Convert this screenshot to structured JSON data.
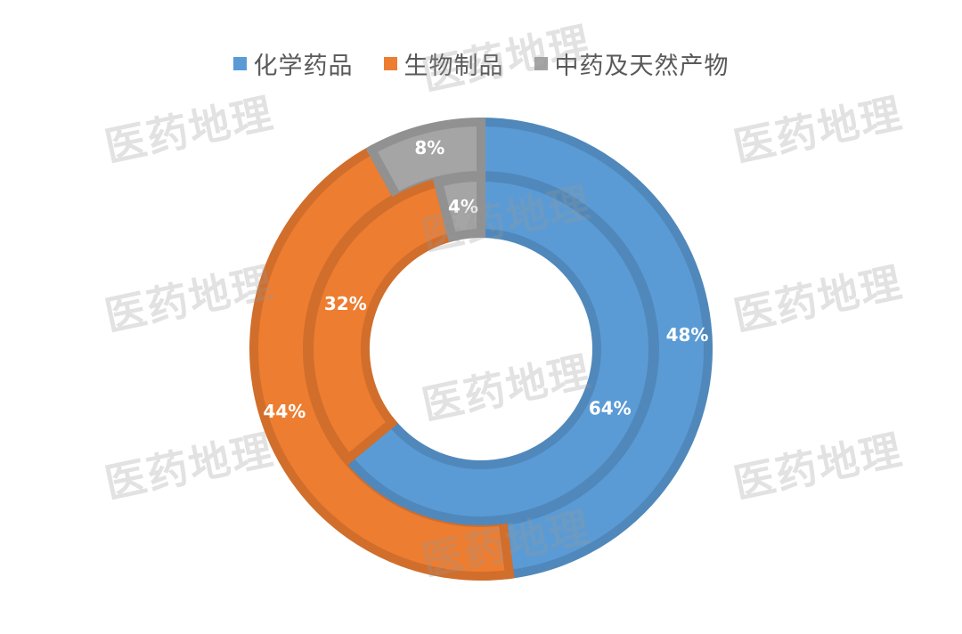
{
  "chart_data": {
    "type": "pie",
    "variant": "donut-two-ring",
    "categories": [
      "化学药品",
      "生物制品",
      "中药及天然产物"
    ],
    "colors": [
      "#5B9BD5",
      "#ED7D31",
      "#A5A5A5"
    ],
    "series": [
      {
        "ring": "outer",
        "values": [
          48,
          44,
          8
        ],
        "labels": [
          "48%",
          "44%",
          "8%"
        ]
      },
      {
        "ring": "inner",
        "values": [
          64,
          32,
          4
        ],
        "labels": [
          "64%",
          "32%",
          "4%"
        ]
      }
    ],
    "legend": {
      "position": "top",
      "items": [
        {
          "label": "化学药品",
          "color": "#5B9BD5"
        },
        {
          "label": "生物制品",
          "color": "#ED7D31"
        },
        {
          "label": "中药及天然产物",
          "color": "#A5A5A5"
        }
      ]
    }
  },
  "watermark": {
    "text": "医药地理"
  }
}
